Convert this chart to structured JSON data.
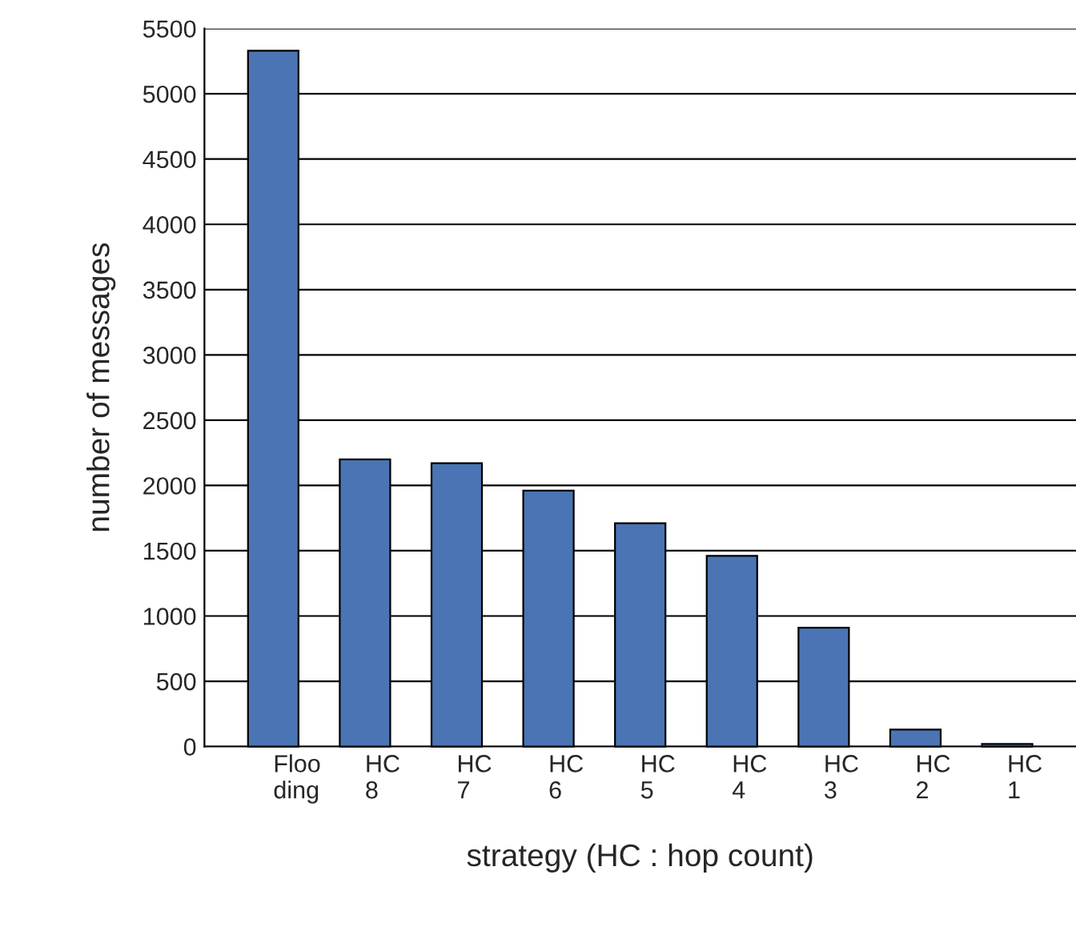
{
  "chart_data": {
    "type": "bar",
    "xlabel": "strategy (HC : hop count)",
    "ylabel": "number of messages",
    "categories": [
      "Floo\nding",
      "HC\n8",
      "HC\n7",
      "HC\n6",
      "HC\n5",
      "HC\n4",
      "HC\n3",
      "HC\n2",
      "HC\n1"
    ],
    "values": [
      5330,
      2200,
      2170,
      1960,
      1710,
      1460,
      910,
      130,
      20
    ],
    "color": "#4a74b4",
    "ylim": [
      0,
      5500
    ],
    "yticks": [
      0,
      500,
      1000,
      1500,
      2000,
      2500,
      3000,
      3500,
      4000,
      4500,
      5000,
      5500
    ],
    "grid": "y",
    "legend": false
  }
}
